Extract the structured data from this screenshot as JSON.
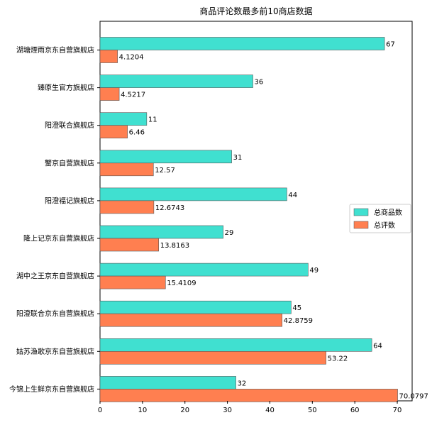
{
  "chart_data": {
    "type": "bar",
    "orientation": "horizontal",
    "title": "商品评论数最多前10商店数据",
    "xlabel": "",
    "ylabel": "",
    "xlim": [
      0,
      73.5
    ],
    "x_ticks": [
      "0",
      "10",
      "20",
      "30",
      "40",
      "50",
      "60",
      "70"
    ],
    "grid": false,
    "legend_position": "right",
    "categories": [
      "湖塘煙雨京东自营旗舰店",
      "臻原生官方旗舰店",
      "阳澄联合旗舰店",
      "蟹京自营旗舰店",
      "阳澄福记旗舰店",
      "隆上记京东自营旗舰店",
      "湖中之王京东自营旗舰店",
      "阳澄联合京东自营旗舰店",
      "姑苏渔歌京东自营旗舰店",
      "今锦上生鲜京东自营旗舰店"
    ],
    "series": [
      {
        "name": "总商品数",
        "color": "#40e0d0",
        "values": [
          67,
          36,
          11,
          31,
          44,
          29,
          49,
          45,
          64,
          32
        ],
        "value_labels": [
          "67",
          "36",
          "11",
          "31",
          "44",
          "29",
          "49",
          "45",
          "64",
          "32"
        ]
      },
      {
        "name": "总评数",
        "color": "#ff7f50",
        "values": [
          4.1204,
          4.5217,
          6.46,
          12.57,
          12.6743,
          13.8163,
          15.4109,
          42.8759,
          53.22,
          70.0797
        ],
        "value_labels": [
          "4.1204",
          "4.5217",
          "6.46",
          "12.57",
          "12.6743",
          "13.8163",
          "15.4109",
          "42.8759",
          "53.22",
          "70.0797"
        ]
      }
    ]
  }
}
